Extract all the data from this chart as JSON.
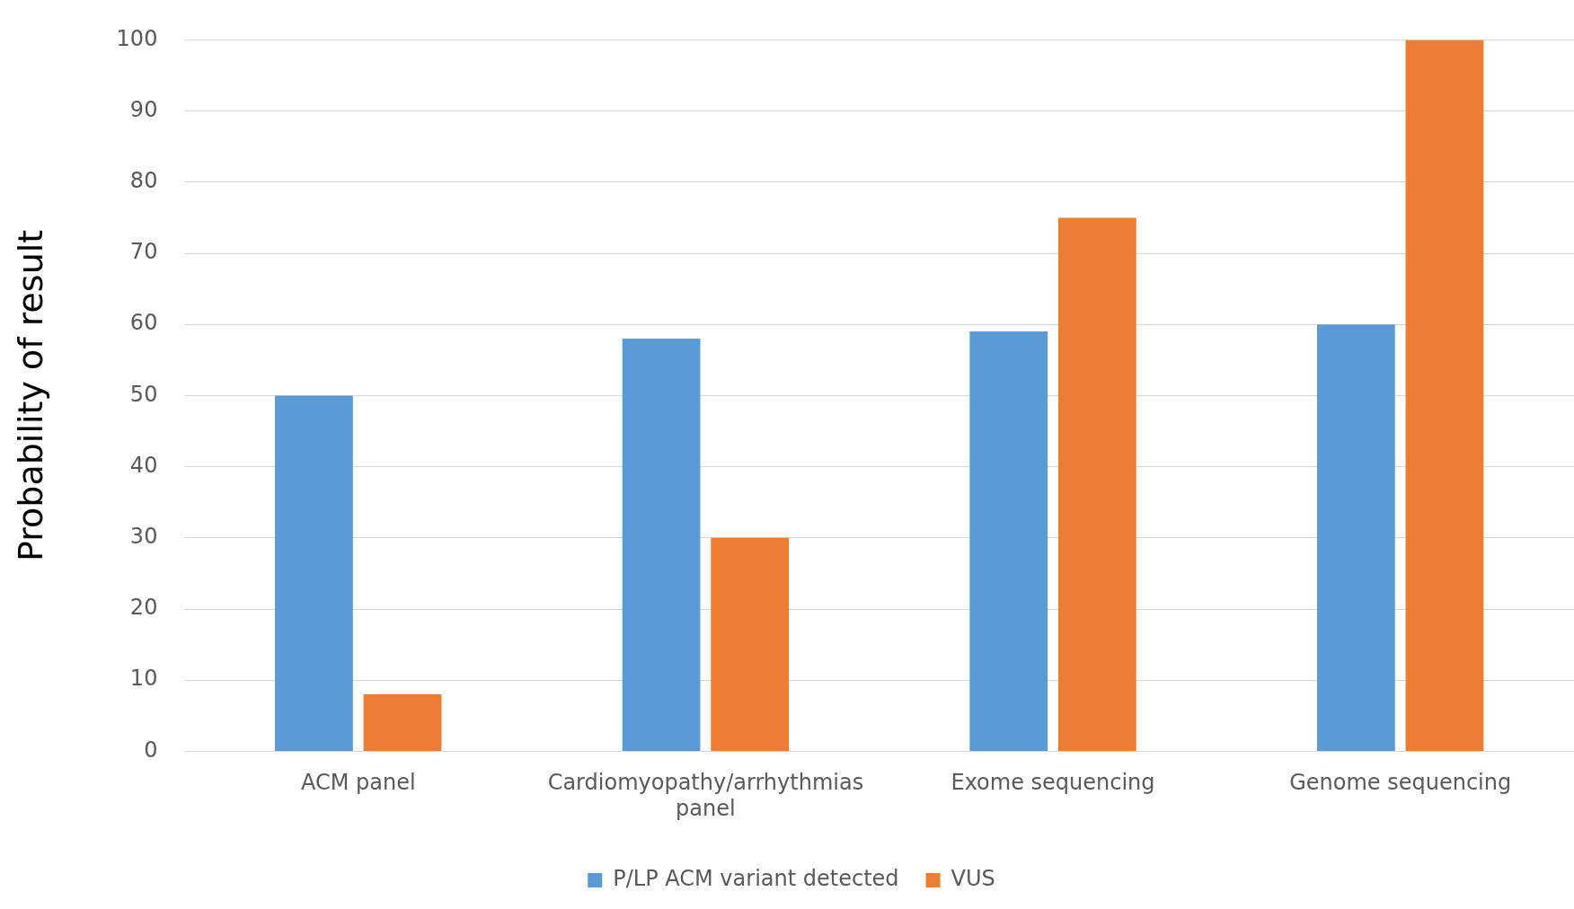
{
  "chart_data": {
    "type": "bar",
    "ylabel": "Probability of result",
    "categories": [
      "ACM panel",
      "Cardiomyopathy/arrhythmias panel",
      "Exome sequencing",
      "Genome sequencing"
    ],
    "series": [
      {
        "name": "P/LP ACM variant detected",
        "color": "#5b9bd5",
        "values": [
          50,
          58,
          59,
          60
        ]
      },
      {
        "name": "VUS",
        "color": "#ed7d31",
        "values": [
          8,
          30,
          75,
          100
        ]
      }
    ],
    "ylim": [
      0,
      100
    ],
    "yticks": [
      0,
      10,
      20,
      30,
      40,
      50,
      60,
      70,
      80,
      90,
      100
    ],
    "grid": "y",
    "legend": "bottom"
  }
}
